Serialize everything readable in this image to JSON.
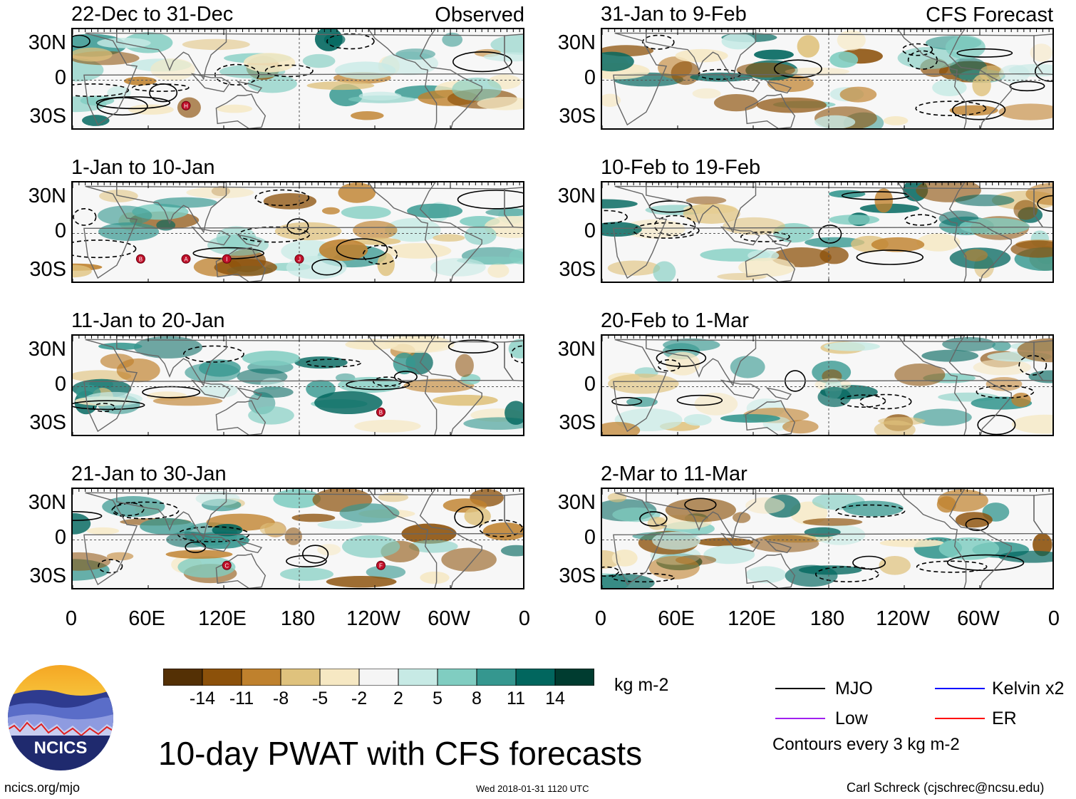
{
  "headers": {
    "left": "Observed",
    "right": "CFS Forecast"
  },
  "panels_left": [
    {
      "title": "22-Dec to 31-Dec"
    },
    {
      "title": "1-Jan to 10-Jan"
    },
    {
      "title": "11-Jan to 20-Jan"
    },
    {
      "title": "21-Jan to 30-Jan"
    }
  ],
  "panels_right": [
    {
      "title": "31-Jan to 9-Feb"
    },
    {
      "title": "10-Feb to 19-Feb"
    },
    {
      "title": "20-Feb to 1-Mar"
    },
    {
      "title": "2-Mar to 11-Mar"
    }
  ],
  "lat_labels": [
    "30N",
    "0",
    "30S"
  ],
  "lon_labels": [
    "0",
    "60E",
    "120E",
    "180",
    "120W",
    "60W",
    "0"
  ],
  "colorbar": {
    "ticks": [
      "-14",
      "-11",
      "-8",
      "-5",
      "-2",
      "2",
      "5",
      "8",
      "11",
      "14"
    ],
    "colors": [
      "#543005",
      "#8c510a",
      "#bf812d",
      "#dfc27d",
      "#f6e8c3",
      "#f5f5f5",
      "#c7eae5",
      "#80cdc1",
      "#35978f",
      "#01665e",
      "#003c30"
    ],
    "units": "kg m-2"
  },
  "legend": {
    "items": [
      {
        "label": "MJO",
        "color": "#000000"
      },
      {
        "label": "Kelvin x2",
        "color": "#0000ff"
      },
      {
        "label": "Low",
        "color": "#a020f0"
      },
      {
        "label": "ER",
        "color": "#ff0000"
      }
    ],
    "note": "Contours every 3 kg m-2"
  },
  "logo_text": "NCICS",
  "main_title": "10-day PWAT with CFS forecasts",
  "footer": {
    "url": "ncics.org/mjo",
    "timestamp": "Wed 2018-01-31 1120 UTC",
    "credit": "Carl Schreck (cjschrec@ncsu.edu)"
  },
  "storm_markers": [
    {
      "panel": 0,
      "label": "H"
    },
    {
      "panel": 1,
      "label": "B"
    },
    {
      "panel": 1,
      "label": "A"
    },
    {
      "panel": 1,
      "label": "I"
    },
    {
      "panel": 1,
      "label": "J"
    },
    {
      "panel": 2,
      "label": "B"
    },
    {
      "panel": 3,
      "label": "C"
    },
    {
      "panel": 3,
      "label": "F"
    }
  ]
}
